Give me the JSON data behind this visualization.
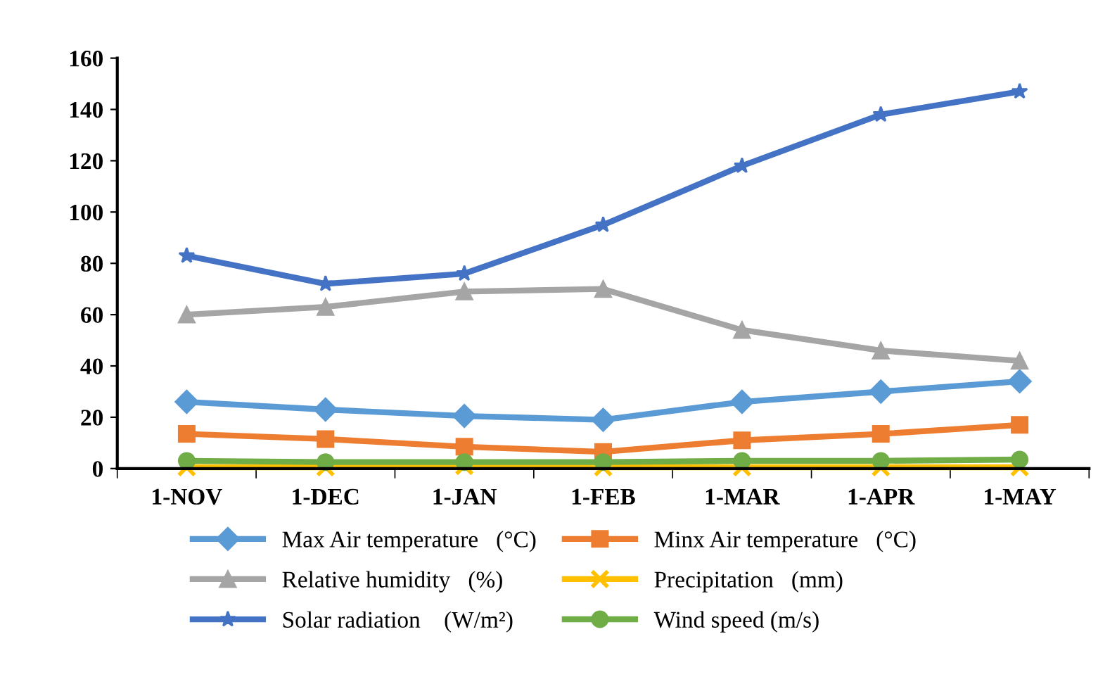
{
  "chart_data": {
    "type": "line",
    "categories": [
      "1-NOV",
      "1-DEC",
      "1-JAN",
      "1-FEB",
      "1-MAR",
      "1-APR",
      "1-MAY"
    ],
    "ylim": [
      0,
      160
    ],
    "yticks": [
      0,
      20,
      40,
      60,
      80,
      100,
      120,
      140,
      160
    ],
    "grid": false,
    "legend": "bottom",
    "line_style": "solid",
    "series": [
      {
        "name": "Max Air temperature   (°C)",
        "color": "#5b9bd5",
        "marker": "diamond",
        "values": [
          26,
          23,
          20.5,
          19,
          26,
          30,
          34
        ]
      },
      {
        "name": "Minx Air temperature   (°C)",
        "color": "#ed7d31",
        "marker": "square",
        "values": [
          13.5,
          11.5,
          8.5,
          6.5,
          11,
          13.5,
          17
        ]
      },
      {
        "name": "Relative humidity   (%)",
        "color": "#a5a5a5",
        "marker": "triangle",
        "values": [
          60,
          63,
          69,
          70,
          54,
          46,
          42
        ]
      },
      {
        "name": "Precipitation   (mm)",
        "color": "#ffc000",
        "marker": "cross",
        "values": [
          0.5,
          0.5,
          1,
          0.5,
          0.5,
          0.5,
          0.5
        ]
      },
      {
        "name": "Solar radiation    (W/m²)",
        "color": "#4472c4",
        "marker": "star",
        "values": [
          83,
          72,
          76,
          95,
          118,
          138,
          147
        ]
      },
      {
        "name": "Wind speed (m/s)",
        "color": "#70ad47",
        "marker": "circle",
        "values": [
          3,
          2.5,
          2.5,
          2.5,
          3,
          3,
          3.5
        ]
      }
    ]
  }
}
